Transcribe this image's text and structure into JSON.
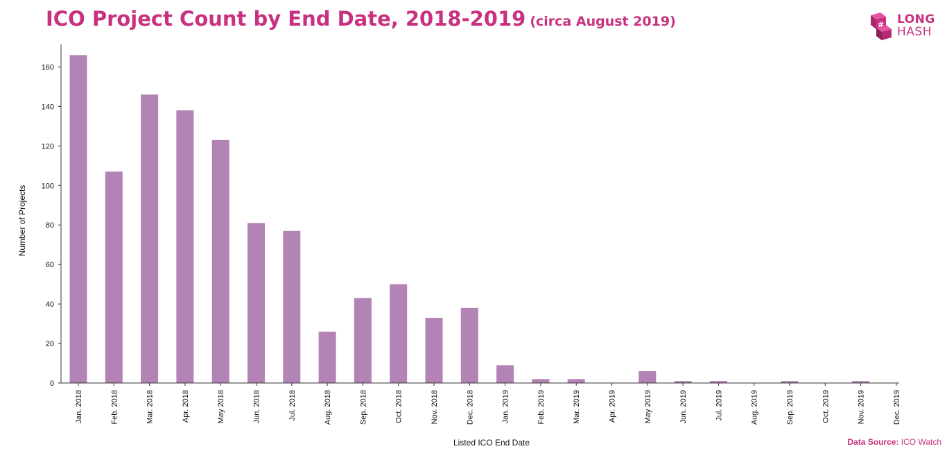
{
  "title": "ICO Project Count by End Date, 2018-2019",
  "subtitle": "(circa August 2019)",
  "logo": {
    "line1": "LONG",
    "line2": "HASH"
  },
  "source": {
    "label": "Data Source:",
    "value": "ICO Watch"
  },
  "colors": {
    "accent": "#c8317f",
    "bar": "#b383b5",
    "axis": "#333333"
  },
  "chart_data": {
    "type": "bar",
    "title": "ICO Project Count by End Date, 2018-2019",
    "xlabel": "Listed ICO End Date",
    "ylabel": "Number of Projects",
    "ylim": [
      0,
      170
    ],
    "yticks": [
      0,
      20,
      40,
      60,
      80,
      100,
      120,
      140,
      160
    ],
    "grid": false,
    "categories": [
      "Jan. 2018",
      "Feb. 2018",
      "Mar. 2018",
      "Apr. 2018",
      "May 2018",
      "Jun. 2018",
      "Jul. 2018",
      "Aug. 2018",
      "Sep. 2018",
      "Oct. 2018",
      "Nov. 2018",
      "Dec. 2018",
      "Jan. 2019",
      "Feb. 2019",
      "Mar. 2019",
      "Apr. 2019",
      "May 2019",
      "Jun. 2019",
      "Jul. 2019",
      "Aug. 2019",
      "Sep. 2019",
      "Oct. 2019",
      "Nov. 2019",
      "Dec. 2019"
    ],
    "values": [
      166,
      107,
      146,
      138,
      123,
      81,
      77,
      26,
      43,
      50,
      33,
      38,
      9,
      2,
      2,
      0,
      6,
      1,
      1,
      0,
      1,
      0,
      1,
      0
    ]
  }
}
